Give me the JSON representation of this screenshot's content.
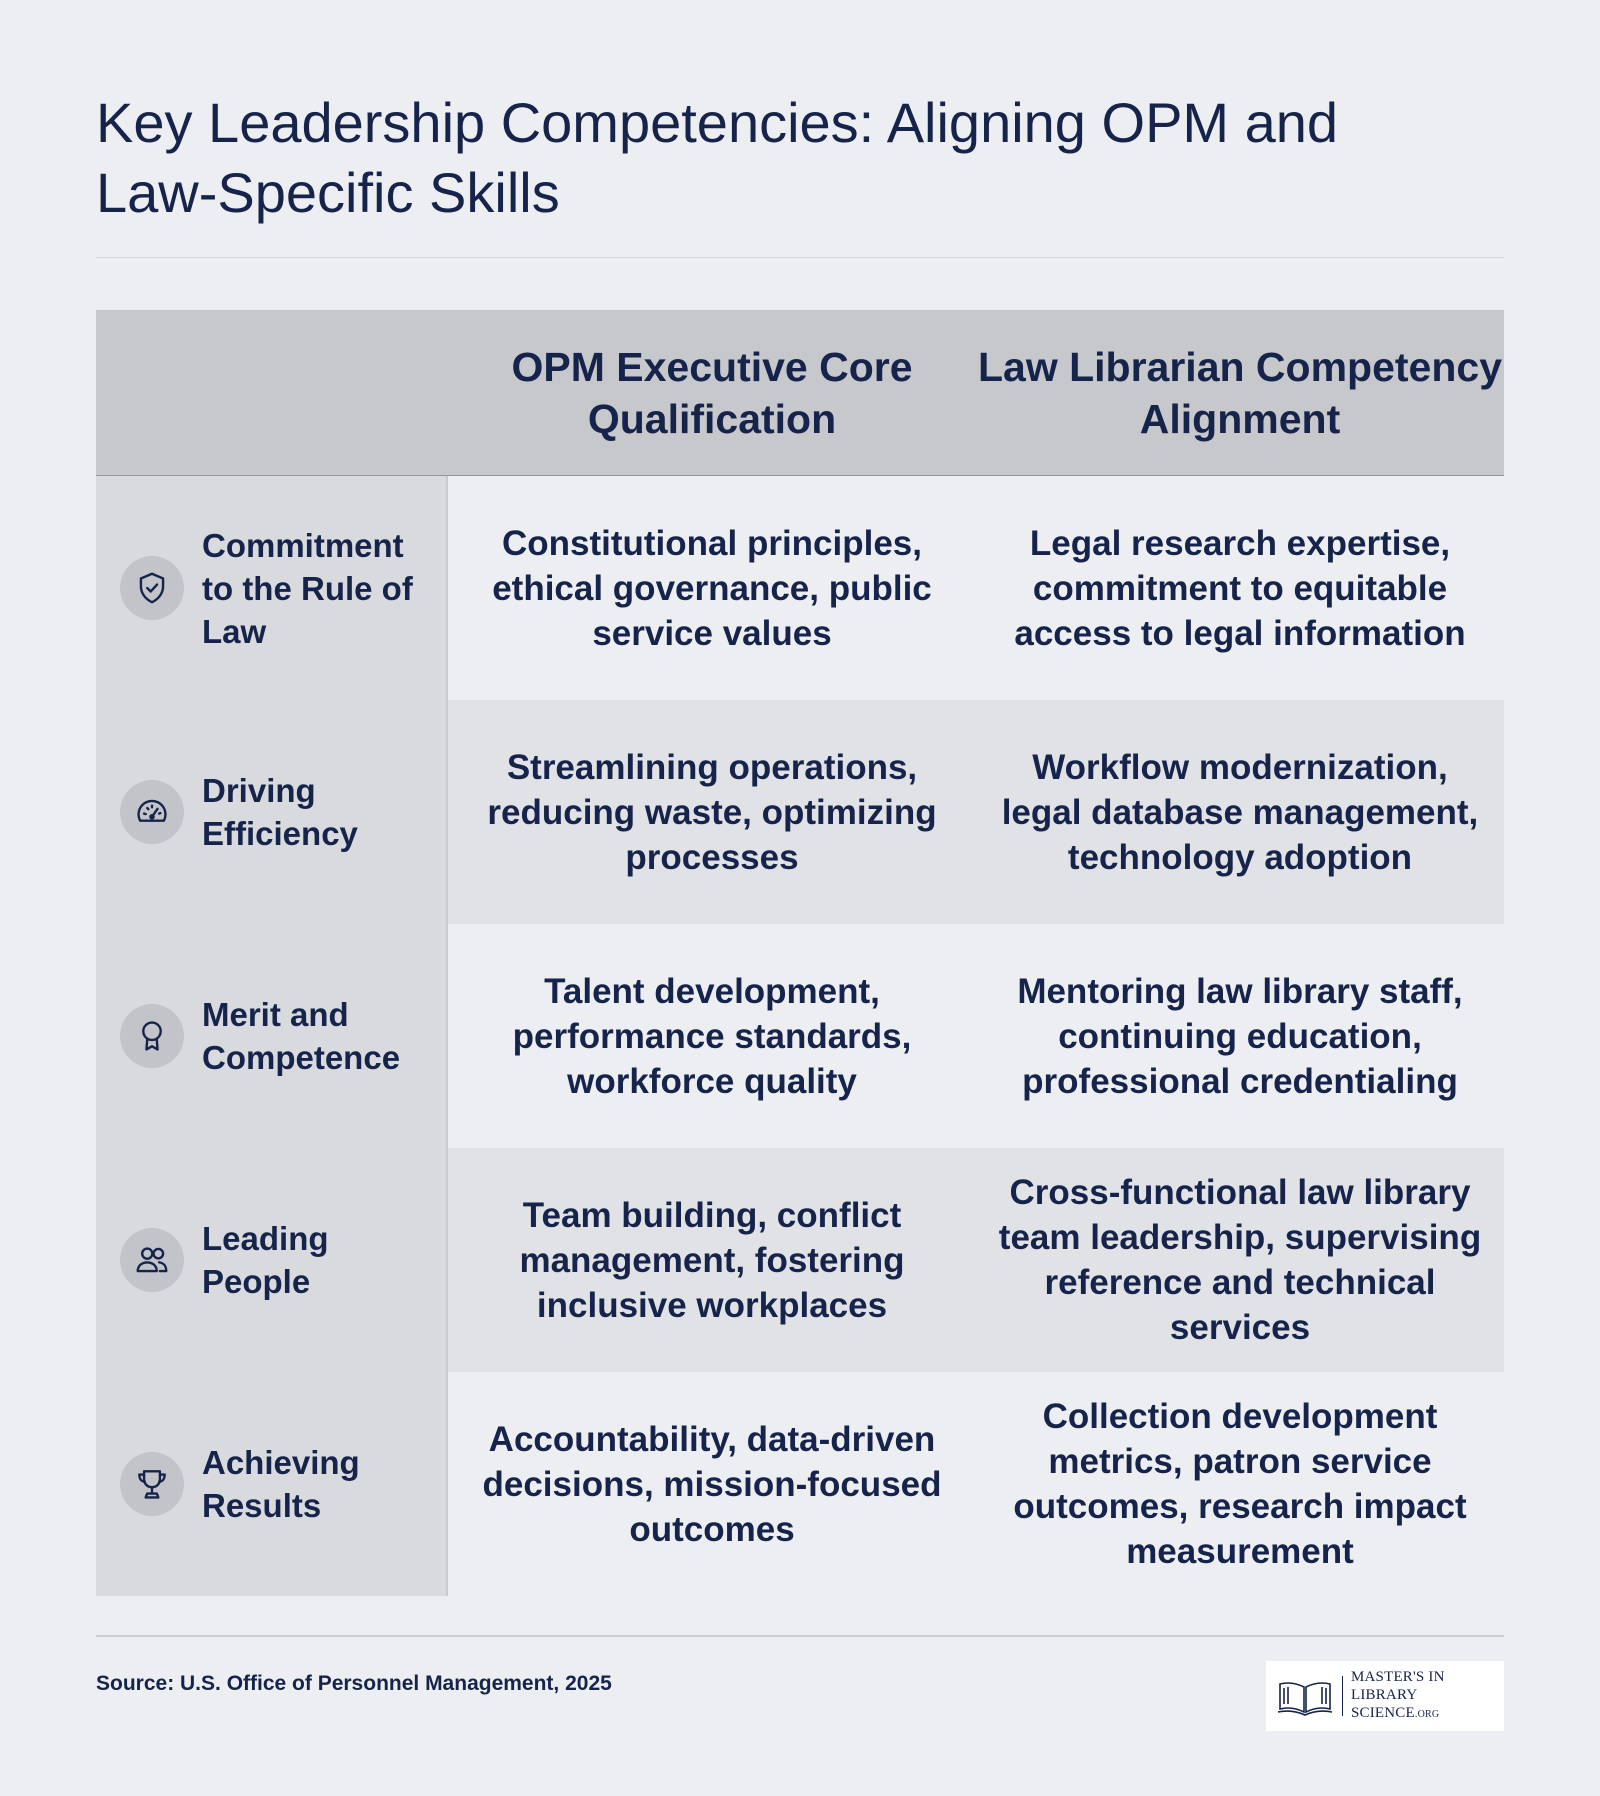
{
  "title": "Key Leadership Competencies: Aligning OPM and Law-Specific Skills",
  "table": {
    "headers": [
      "",
      "OPM Executive Core Qualification",
      "Law Librarian Competency Alignment"
    ],
    "rows": [
      {
        "label": "Commitment to the Rule of Law",
        "icon": "shield-check-icon",
        "opm": "Constitutional principles, ethical governance, public service values",
        "law": "Legal research expertise, commitment to equitable access to legal information"
      },
      {
        "label": "Driving Efficiency",
        "icon": "speedometer-icon",
        "opm": "Streamlining operations, reducing waste, optimizing processes",
        "law": "Workflow modernization, legal database management, technology adoption"
      },
      {
        "label": "Merit and Competence",
        "icon": "award-ribbon-icon",
        "opm": "Talent development, performance standards, workforce quality",
        "law": "Mentoring law library staff, continuing education, professional credentialing"
      },
      {
        "label": "Leading People",
        "icon": "people-icon",
        "opm": "Team building, conflict management, fostering inclusive workplaces",
        "law": "Cross-functional law library team leadership, supervising reference and technical services"
      },
      {
        "label": "Achieving Results",
        "icon": "trophy-icon",
        "opm": "Accountability, data-driven decisions, mission-focused outcomes",
        "law": "Collection development metrics, patron service outcomes, research impact measurement"
      }
    ]
  },
  "source": "Source: U.S. Office of Personnel Management, 2025",
  "logo": {
    "line1": "MASTER'S IN",
    "line2": "LIBRARY SCIENCE",
    "suffix": ".ORG"
  },
  "colors": {
    "background": "#edeef1",
    "text": "#16234a",
    "header_bg": "#c7c8cc",
    "label_col_bg": "#d9dadd",
    "row_odd": "#eceef1",
    "row_even": "#e1e2e5"
  }
}
